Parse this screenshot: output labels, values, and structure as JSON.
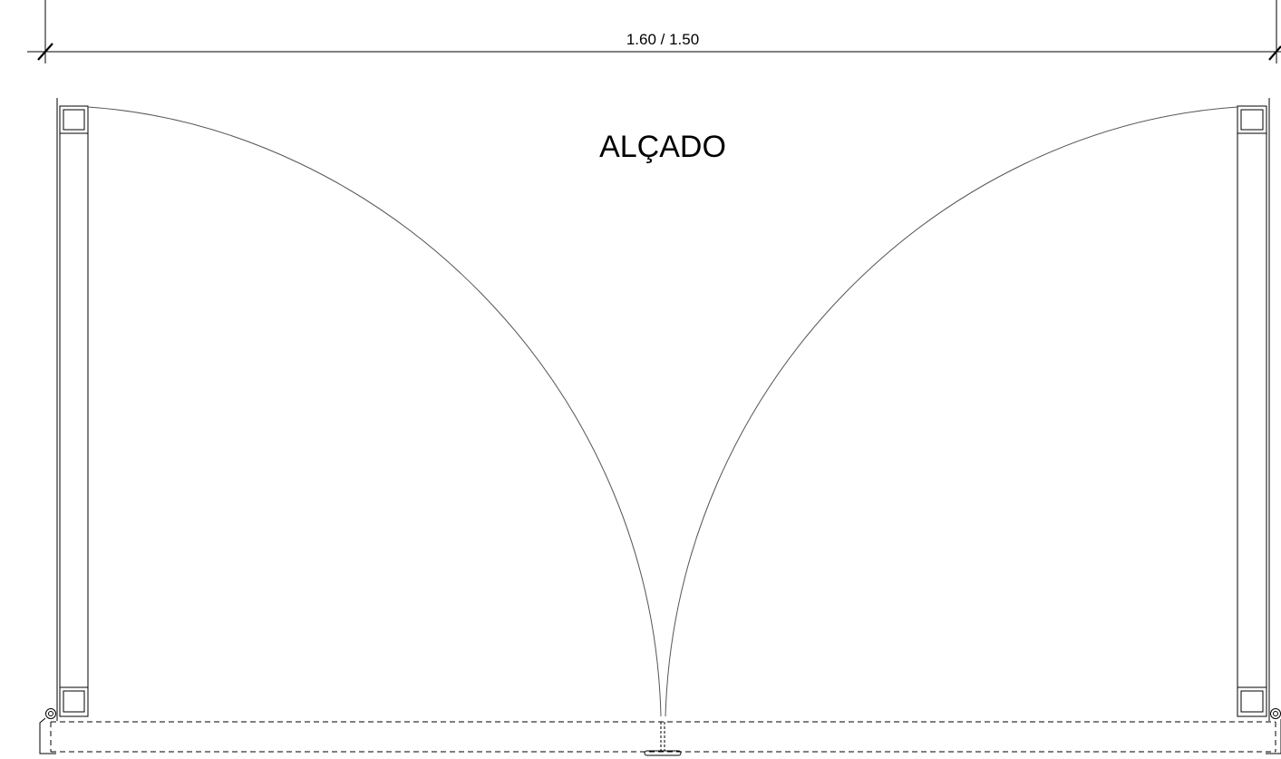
{
  "dimension": {
    "label": "1.60 / 1.50"
  },
  "view": {
    "title": "ALÇADO"
  },
  "colors": {
    "line": "#000000",
    "arc": "#555555",
    "background": "#ffffff"
  }
}
